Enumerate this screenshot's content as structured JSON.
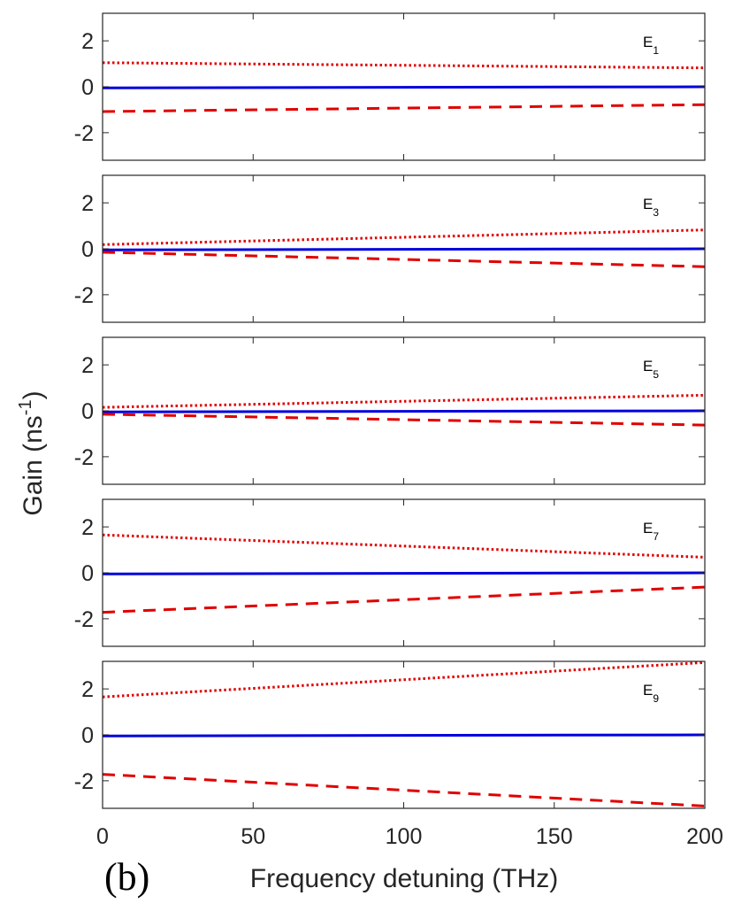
{
  "figure_label": "(b)",
  "chart_data": {
    "type": "line",
    "xlabel": "Frequency detuning (THz)",
    "ylabel": "Gain (ns",
    "ylabel_sup": "-1",
    "ylabel_close": ")",
    "xlim": [
      0,
      200
    ],
    "ylim": [
      -3.2,
      3.2
    ],
    "x_ticks": [
      0,
      50,
      100,
      150,
      200
    ],
    "x_tick_labels": [
      "0",
      "50",
      "100",
      "150",
      "200"
    ],
    "y_ticks": [
      -2,
      0,
      2
    ],
    "y_tick_labels": [
      "-2",
      "0",
      "2"
    ],
    "colors": {
      "solid": "#0000dd",
      "dotted": "#e00000",
      "dashed": "#e00000",
      "axis": "#262626"
    },
    "panels": [
      {
        "label": "E",
        "label_sub": "1",
        "series": [
          {
            "name": "dotted",
            "style": "dotted",
            "x": [
              0,
              200
            ],
            "values": [
              1.05,
              0.82
            ]
          },
          {
            "name": "solid",
            "style": "solid",
            "x": [
              0,
              200
            ],
            "values": [
              -0.05,
              0.0
            ]
          },
          {
            "name": "dashed",
            "style": "dashed",
            "x": [
              0,
              200
            ],
            "values": [
              -1.08,
              -0.78
            ]
          }
        ]
      },
      {
        "label": "E",
        "label_sub": "3",
        "series": [
          {
            "name": "dotted",
            "style": "dotted",
            "x": [
              0,
              200
            ],
            "values": [
              0.18,
              0.82
            ]
          },
          {
            "name": "solid",
            "style": "solid",
            "x": [
              0,
              200
            ],
            "values": [
              -0.05,
              0.0
            ]
          },
          {
            "name": "dashed",
            "style": "dashed",
            "x": [
              0,
              200
            ],
            "values": [
              -0.15,
              -0.78
            ]
          }
        ]
      },
      {
        "label": "E",
        "label_sub": "5",
        "series": [
          {
            "name": "dotted",
            "style": "dotted",
            "x": [
              0,
              200
            ],
            "values": [
              0.15,
              0.68
            ]
          },
          {
            "name": "solid",
            "style": "solid",
            "x": [
              0,
              200
            ],
            "values": [
              -0.05,
              0.0
            ]
          },
          {
            "name": "dashed",
            "style": "dashed",
            "x": [
              0,
              200
            ],
            "values": [
              -0.15,
              -0.62
            ]
          }
        ]
      },
      {
        "label": "E",
        "label_sub": "7",
        "series": [
          {
            "name": "dotted",
            "style": "dotted",
            "x": [
              0,
              200
            ],
            "values": [
              1.65,
              0.68
            ]
          },
          {
            "name": "solid",
            "style": "solid",
            "x": [
              0,
              200
            ],
            "values": [
              -0.05,
              0.0
            ]
          },
          {
            "name": "dashed",
            "style": "dashed",
            "x": [
              0,
              200
            ],
            "values": [
              -1.72,
              -0.62
            ]
          }
        ]
      },
      {
        "label": "E",
        "label_sub": "9",
        "series": [
          {
            "name": "dotted",
            "style": "dotted",
            "x": [
              0,
              200
            ],
            "values": [
              1.65,
              3.15
            ]
          },
          {
            "name": "solid",
            "style": "solid",
            "x": [
              0,
              200
            ],
            "values": [
              -0.05,
              0.0
            ]
          },
          {
            "name": "dashed",
            "style": "dashed",
            "x": [
              0,
              200
            ],
            "values": [
              -1.72,
              -3.1
            ]
          }
        ]
      }
    ]
  }
}
